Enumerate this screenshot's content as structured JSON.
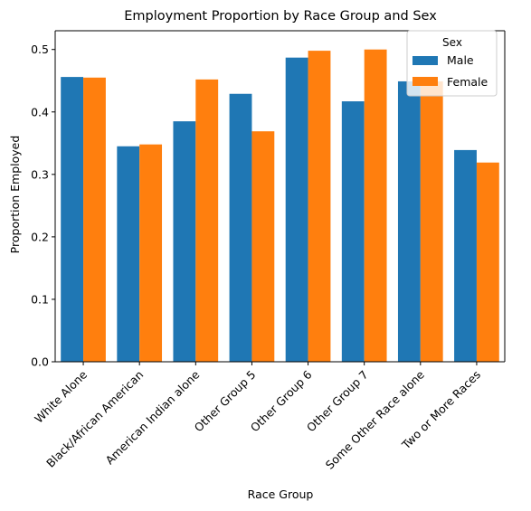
{
  "chart_data": {
    "type": "bar",
    "title": "Employment Proportion by Race Group and Sex",
    "xlabel": "Race Group",
    "ylabel": "Proportion Employed",
    "ylim": [
      0,
      0.53
    ],
    "yticks": [
      "0.0",
      "0.1",
      "0.2",
      "0.3",
      "0.4",
      "0.5"
    ],
    "categories": [
      "White Alone",
      "Black/African American",
      "American Indian alone",
      "Other Group 5",
      "Other Group 6",
      "Other Group 7",
      "Some Other Race alone",
      "Two or More Races"
    ],
    "legend": {
      "title": "Sex",
      "position": "top-right"
    },
    "grid": false,
    "series": [
      {
        "name": "Male",
        "color": "#1f77b4",
        "values": [
          0.456,
          0.345,
          0.385,
          0.429,
          0.487,
          0.417,
          0.449,
          0.339
        ]
      },
      {
        "name": "Female",
        "color": "#ff7f0e",
        "values": [
          0.455,
          0.348,
          0.452,
          0.369,
          0.498,
          0.5,
          0.449,
          0.319
        ]
      }
    ]
  }
}
